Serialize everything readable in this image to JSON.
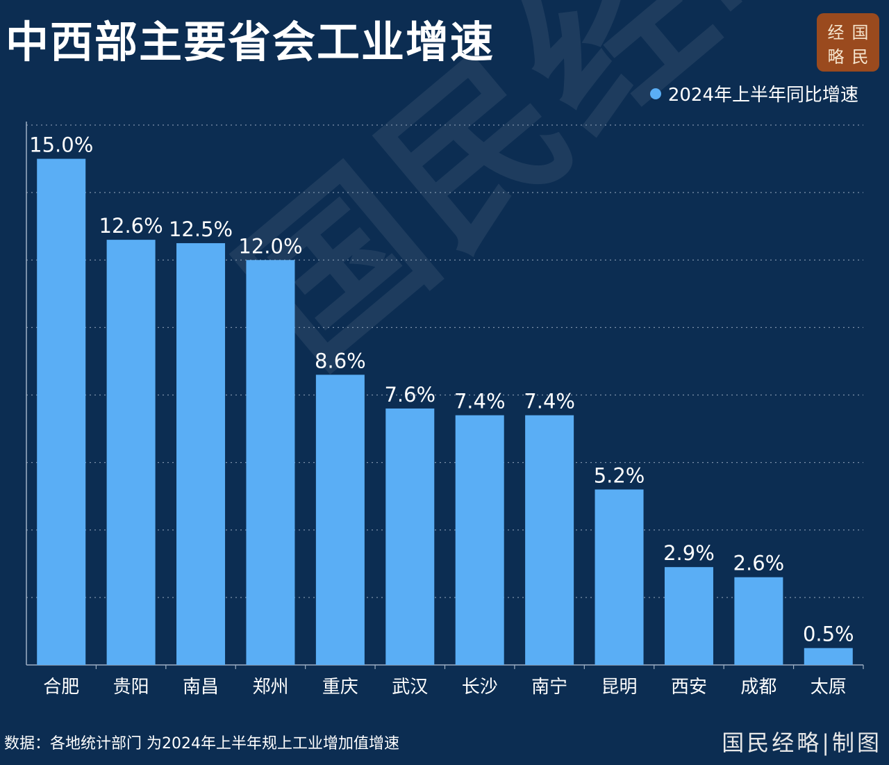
{
  "title": "中西部主要省会工业增速",
  "logo": {
    "chars": [
      "经",
      "国",
      "略",
      "民"
    ]
  },
  "watermark": "国民经略",
  "footer": {
    "source": "数据：各地统计部门 为2024年上半年规上工业增加值增速",
    "brand": "国民经略|制图"
  },
  "colors": {
    "background": "#0c2d52",
    "bar": "#5aaef5",
    "logo": "#9a4a1e"
  },
  "chart_data": {
    "type": "bar",
    "categories": [
      "合肥",
      "贵阳",
      "南昌",
      "郑州",
      "重庆",
      "武汉",
      "长沙",
      "南宁",
      "昆明",
      "西安",
      "成都",
      "太原"
    ],
    "series": [
      {
        "name": "2024年上半年同比增速",
        "values": [
          15.0,
          12.6,
          12.5,
          12.0,
          8.6,
          7.6,
          7.4,
          7.4,
          5.2,
          2.9,
          2.6,
          0.5
        ],
        "labels": [
          "15.0%",
          "12.6%",
          "12.5%",
          "12.0%",
          "8.6%",
          "7.6%",
          "7.4%",
          "7.4%",
          "5.2%",
          "2.9%",
          "2.6%",
          "0.5%"
        ]
      }
    ],
    "ylim": [
      0,
      16
    ],
    "grid": true,
    "legend": "top-right",
    "xlabel": "",
    "ylabel": ""
  }
}
